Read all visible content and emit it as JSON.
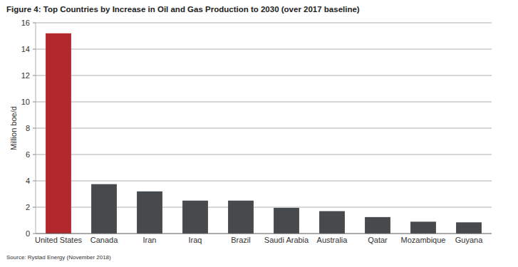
{
  "chart_data": {
    "type": "bar",
    "title": "Figure 4: Top Countries by Increase in Oil and Gas Production to 2030 (over 2017 baseline)",
    "y_label": "Million boe/d",
    "source": "Source: Rystad Energy (November 2018)",
    "categories": [
      "United States",
      "Canada",
      "Iran",
      "Iraq",
      "Brazil",
      "Saudi Arabia",
      "Australia",
      "Qatar",
      "Mozambique",
      "Guyana"
    ],
    "values": [
      15.2,
      3.75,
      3.2,
      2.5,
      2.5,
      1.95,
      1.7,
      1.25,
      0.9,
      0.85
    ],
    "colors": [
      "#b3282d",
      "#474a4d",
      "#474a4d",
      "#474a4d",
      "#474a4d",
      "#474a4d",
      "#474a4d",
      "#474a4d",
      "#474a4d",
      "#474a4d"
    ],
    "ylim": [
      0,
      16
    ],
    "yticks": [
      0,
      2,
      4,
      6,
      8,
      10,
      12,
      14,
      16
    ],
    "grid": true
  }
}
